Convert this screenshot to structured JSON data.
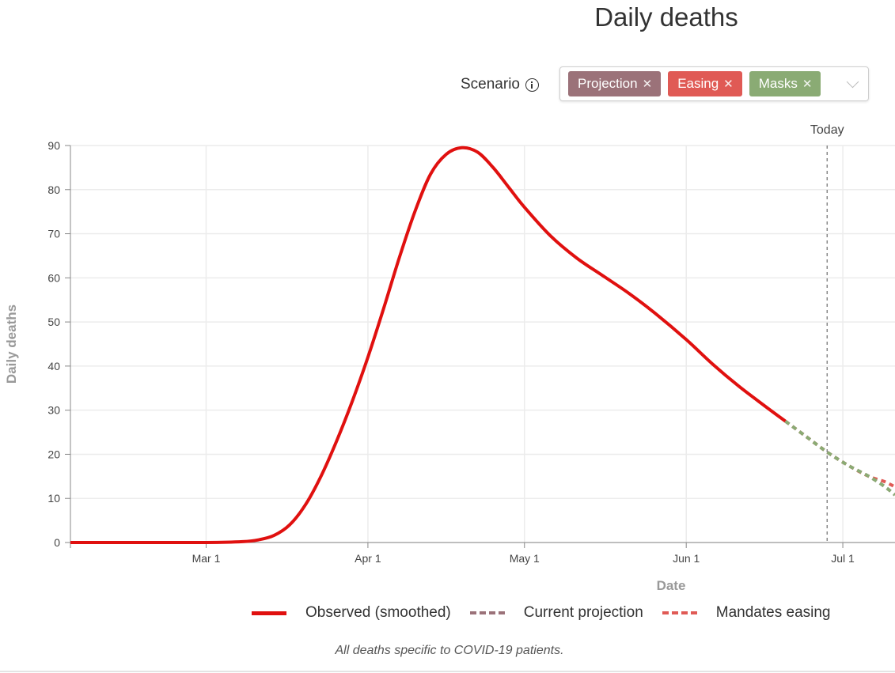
{
  "title": "Daily deaths",
  "scenario": {
    "label": "Scenario",
    "tags": [
      {
        "label": "Projection",
        "color": "#9b7279"
      },
      {
        "label": "Easing",
        "color": "#e05a55"
      },
      {
        "label": "Masks",
        "color": "#8aab74"
      }
    ]
  },
  "chart_data": {
    "type": "line",
    "title": "Daily deaths",
    "xlabel": "Date",
    "ylabel": "Daily deaths",
    "xlim": [
      "2020-02-04",
      "2020-07-11"
    ],
    "ylim": [
      0,
      90
    ],
    "y_ticks": [
      0,
      10,
      20,
      30,
      40,
      50,
      60,
      70,
      80,
      90
    ],
    "x_ticks": [
      {
        "date": "2020-03-01",
        "label": "Mar 1"
      },
      {
        "date": "2020-04-01",
        "label": "Apr 1"
      },
      {
        "date": "2020-05-01",
        "label": "May 1"
      },
      {
        "date": "2020-06-01",
        "label": "Jun 1"
      },
      {
        "date": "2020-07-01",
        "label": "Jul 1"
      }
    ],
    "grid": true,
    "today": {
      "date": "2020-06-28",
      "label": "Today"
    },
    "series": [
      {
        "name": "Observed (smoothed)",
        "color": "#e0100f",
        "style": "solid",
        "points": [
          [
            "2020-02-04",
            0
          ],
          [
            "2020-02-15",
            0
          ],
          [
            "2020-03-01",
            0
          ],
          [
            "2020-03-08",
            0.2
          ],
          [
            "2020-03-11",
            0.6
          ],
          [
            "2020-03-14",
            1.6
          ],
          [
            "2020-03-17",
            4
          ],
          [
            "2020-03-20",
            8.5
          ],
          [
            "2020-03-23",
            15
          ],
          [
            "2020-03-26",
            23
          ],
          [
            "2020-03-29",
            32
          ],
          [
            "2020-04-01",
            42
          ],
          [
            "2020-04-04",
            53
          ],
          [
            "2020-04-07",
            64.5
          ],
          [
            "2020-04-10",
            75
          ],
          [
            "2020-04-13",
            83.5
          ],
          [
            "2020-04-16",
            88
          ],
          [
            "2020-04-19",
            89.5
          ],
          [
            "2020-04-22",
            88.5
          ],
          [
            "2020-04-25",
            85
          ],
          [
            "2020-04-28",
            80.5
          ],
          [
            "2020-05-01",
            76
          ],
          [
            "2020-05-06",
            69.5
          ],
          [
            "2020-05-11",
            64.5
          ],
          [
            "2020-05-16",
            60.5
          ],
          [
            "2020-05-21",
            56.5
          ],
          [
            "2020-05-26",
            52
          ],
          [
            "2020-06-01",
            46
          ],
          [
            "2020-06-06",
            40.5
          ],
          [
            "2020-06-11",
            35.5
          ],
          [
            "2020-06-16",
            31
          ],
          [
            "2020-06-20",
            27.5
          ]
        ]
      },
      {
        "name": "Current projection",
        "color": "#9b7279",
        "style": "dashed",
        "points": [
          [
            "2020-06-20",
            27.5
          ],
          [
            "2020-06-24",
            24
          ],
          [
            "2020-06-28",
            20.5
          ],
          [
            "2020-07-02",
            17.5
          ],
          [
            "2020-07-06",
            15
          ],
          [
            "2020-07-09",
            12.7
          ],
          [
            "2020-07-11",
            10.8
          ]
        ]
      },
      {
        "name": "Mandates easing",
        "color": "#e05a55",
        "style": "dashed",
        "points": [
          [
            "2020-06-20",
            27.5
          ],
          [
            "2020-06-24",
            24
          ],
          [
            "2020-06-28",
            20.5
          ],
          [
            "2020-07-02",
            17.5
          ],
          [
            "2020-07-06",
            15
          ],
          [
            "2020-07-09",
            13.8
          ],
          [
            "2020-07-11",
            12.6
          ]
        ]
      },
      {
        "name": "",
        "color": "#8aab74",
        "style": "dashed",
        "points": [
          [
            "2020-06-20",
            27.5
          ],
          [
            "2020-06-24",
            24
          ],
          [
            "2020-06-28",
            20.5
          ],
          [
            "2020-07-02",
            17.5
          ],
          [
            "2020-07-06",
            15
          ],
          [
            "2020-07-09",
            12.7
          ],
          [
            "2020-07-11",
            10.8
          ]
        ]
      }
    ]
  },
  "legend": [
    {
      "label": "Observed (smoothed)",
      "color": "#e0100f",
      "style": "solid"
    },
    {
      "label": "Current projection",
      "color": "#9b7279",
      "style": "dashed"
    },
    {
      "label": "Mandates easing",
      "color": "#e05a55",
      "style": "dashed"
    }
  ],
  "footnote": "All deaths specific to COVID-19 patients."
}
